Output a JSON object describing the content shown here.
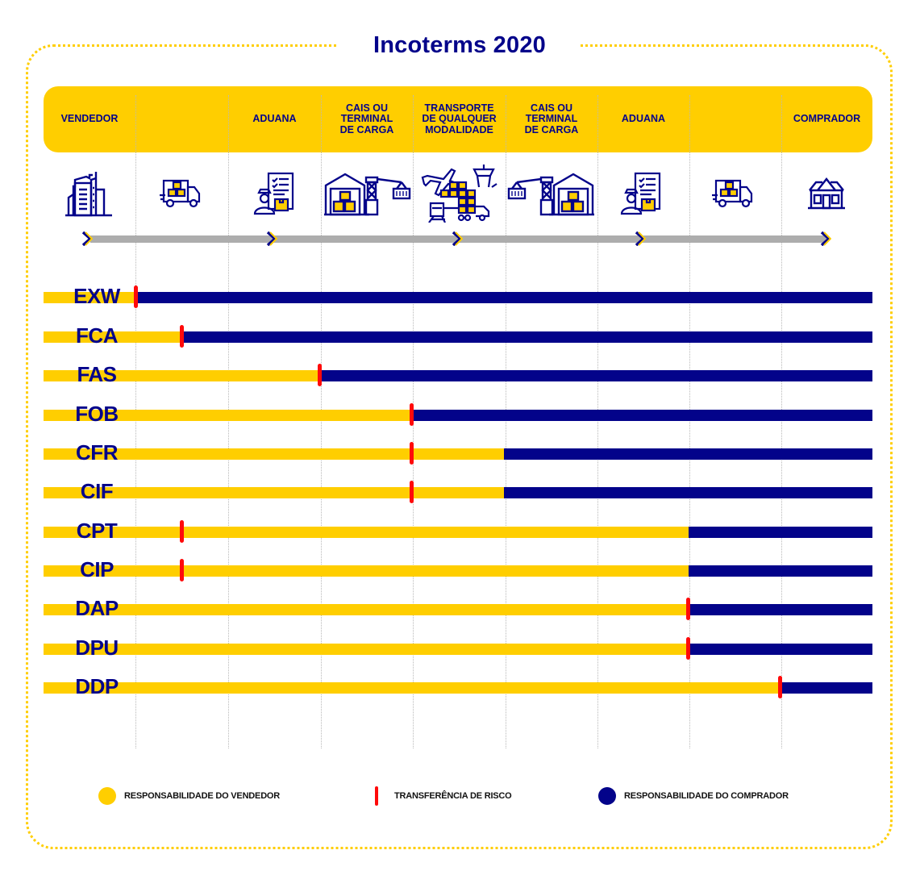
{
  "title": "Incoterms 2020",
  "colors": {
    "seller": "#FFCE00",
    "buyer": "#03038A",
    "risk": "#FF0A0A",
    "track": "#ADADAD",
    "frame": "#FFCE00"
  },
  "header": {
    "stages": [
      {
        "label": "VENDEDOR"
      },
      {
        "label": ""
      },
      {
        "label": "ADUANA"
      },
      {
        "label": "CAIS OU\nTERMINAL\nDE CARGA"
      },
      {
        "label": "TRANSPORTE\nDE QUALQUER\nMODALIDADE"
      },
      {
        "label": "CAIS OU\nTERMINAL\nDE CARGA"
      },
      {
        "label": "ADUANA"
      },
      {
        "label": ""
      },
      {
        "label": "COMPRADOR"
      }
    ]
  },
  "icons": [
    "office-building-icon",
    "delivery-truck-icon",
    "customs-officer-document-icon",
    "warehouse-crane-container-icon",
    "multimodal-transport-icon",
    "crane-container-warehouse-icon",
    "customs-officer-document-icon",
    "delivery-truck-icon",
    "house-icon"
  ],
  "chart_data": {
    "type": "bar",
    "title": "Incoterms 2020",
    "xlabel": "",
    "ylabel": "",
    "stages": [
      "VENDEDOR",
      "",
      "ADUANA",
      "CAIS OU TERMINAL DE CARGA",
      "TRANSPORTE DE QUALQUER MODALIDADE",
      "CAIS OU TERMINAL DE CARGA",
      "ADUANA",
      "",
      "COMPRADOR"
    ],
    "note": "Positions measured in stage-boundary units (0 = bar start, 9 = bar end). seller_until = end of seller (yellow) responsibility; risk_at = point of risk transfer.",
    "categories": [
      "EXW",
      "FCA",
      "FAS",
      "FOB",
      "CFR",
      "CIF",
      "CPT",
      "CIP",
      "DAP",
      "DPU",
      "DDP"
    ],
    "series": [
      {
        "name": "Responsabilidade do vendedor (até)",
        "values": [
          1,
          1.5,
          3,
          4,
          5,
          5,
          7,
          7,
          7,
          7,
          8
        ]
      },
      {
        "name": "Transferência de risco (em)",
        "values": [
          1,
          1.5,
          3,
          4,
          4,
          4,
          1.5,
          1.5,
          7,
          7,
          8
        ]
      }
    ],
    "legend": [
      "RESPONSABILIDADE DO VENDEDOR",
      "TRANSFERÊNCIA DE RISCO",
      "RESPONSABILIDADE DO COMPRADOR"
    ],
    "legend_position": "bottom"
  },
  "rows": [
    {
      "code": "EXW",
      "seller_until": 1,
      "risk_at": 1
    },
    {
      "code": "FCA",
      "seller_until": 1.5,
      "risk_at": 1.5
    },
    {
      "code": "FAS",
      "seller_until": 3,
      "risk_at": 3
    },
    {
      "code": "FOB",
      "seller_until": 4,
      "risk_at": 4
    },
    {
      "code": "CFR",
      "seller_until": 5,
      "risk_at": 4
    },
    {
      "code": "CIF",
      "seller_until": 5,
      "risk_at": 4
    },
    {
      "code": "CPT",
      "seller_until": 7,
      "risk_at": 1.5
    },
    {
      "code": "CIP",
      "seller_until": 7,
      "risk_at": 1.5
    },
    {
      "code": "DAP",
      "seller_until": 7,
      "risk_at": 7
    },
    {
      "code": "DPU",
      "seller_until": 7,
      "risk_at": 7
    },
    {
      "code": "DDP",
      "seller_until": 8,
      "risk_at": 8
    }
  ],
  "legend": {
    "seller": "RESPONSABILIDADE DO VENDEDOR",
    "risk": "TRANSFERÊNCIA DE RISCO",
    "buyer": "RESPONSABILIDADE DO COMPRADOR"
  }
}
